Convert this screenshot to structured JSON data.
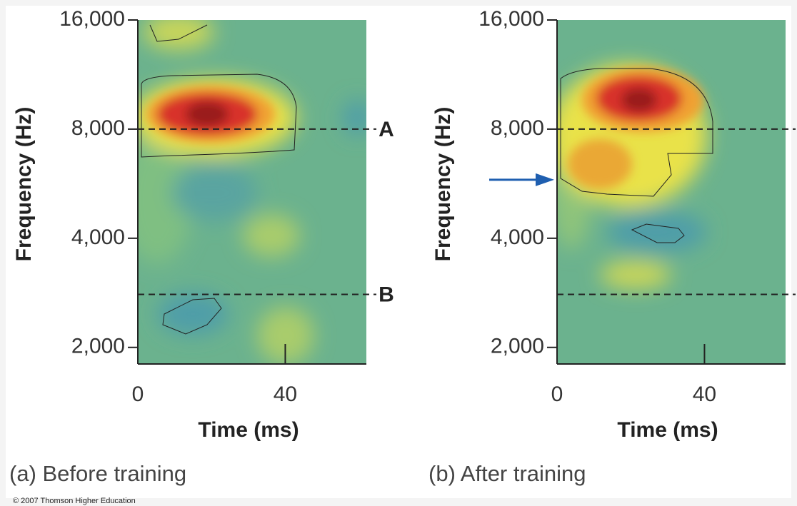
{
  "chart_data": [
    {
      "type": "heatmap",
      "caption": "(a) Before training",
      "xlabel": "Time (ms)",
      "ylabel": "Frequency (Hz)",
      "xlim": [
        0,
        62
      ],
      "xticks": [
        0,
        40
      ],
      "ylim": [
        1800,
        16000
      ],
      "yscale": "log",
      "yticks": [
        {
          "value": 2000,
          "label": "2,000"
        },
        {
          "value": 4000,
          "label": "4,000"
        },
        {
          "value": 8000,
          "label": "8,000"
        },
        {
          "value": 16000,
          "label": "16,000"
        }
      ],
      "hlines": [
        {
          "value": 8000,
          "label": "A"
        },
        {
          "value": 2800,
          "label": "B"
        }
      ]
    },
    {
      "type": "heatmap",
      "caption": "(b) After training",
      "xlabel": "Time (ms)",
      "ylabel": "Frequency (Hz)",
      "xlim": [
        0,
        62
      ],
      "xticks": [
        0,
        40
      ],
      "ylim": [
        1800,
        16000
      ],
      "yscale": "log",
      "yticks": [
        {
          "value": 2000,
          "label": "2,000"
        },
        {
          "value": 4000,
          "label": "4,000"
        },
        {
          "value": 8000,
          "label": "8,000"
        },
        {
          "value": 16000,
          "label": "16,000"
        }
      ],
      "hlines": [
        {
          "value": 8000
        },
        {
          "value": 2800
        }
      ],
      "arrow_at": 5800,
      "arrow_color": "#1f5fb0"
    }
  ],
  "footer": "© 2007 Thomson Higher Education"
}
